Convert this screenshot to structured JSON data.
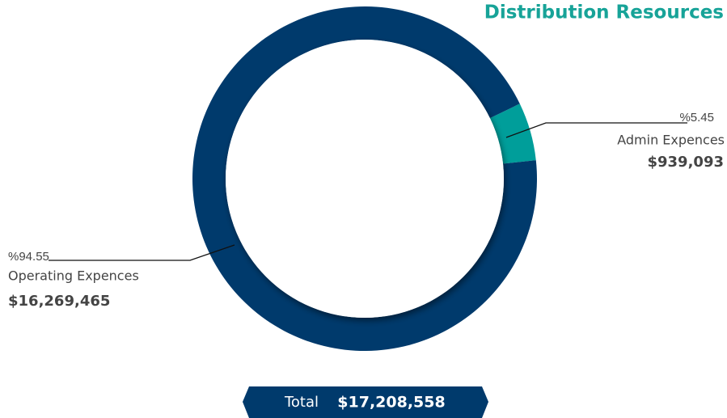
{
  "chart_data": {
    "type": "donut",
    "title": "Distribution Resources",
    "categories": [
      "Admin Expences",
      "Operating Expences"
    ],
    "values": [
      5.45,
      94.55
    ],
    "value_labels": [
      "%5.45",
      "%94.55"
    ],
    "amounts": [
      939093,
      16269465
    ],
    "amount_labels": [
      "$939,093",
      "$16,269,465"
    ],
    "colors": [
      "#009e9a",
      "#003a6c"
    ],
    "total_label": "Total",
    "total": 17208558,
    "total_value_label": "$17,208,558"
  }
}
